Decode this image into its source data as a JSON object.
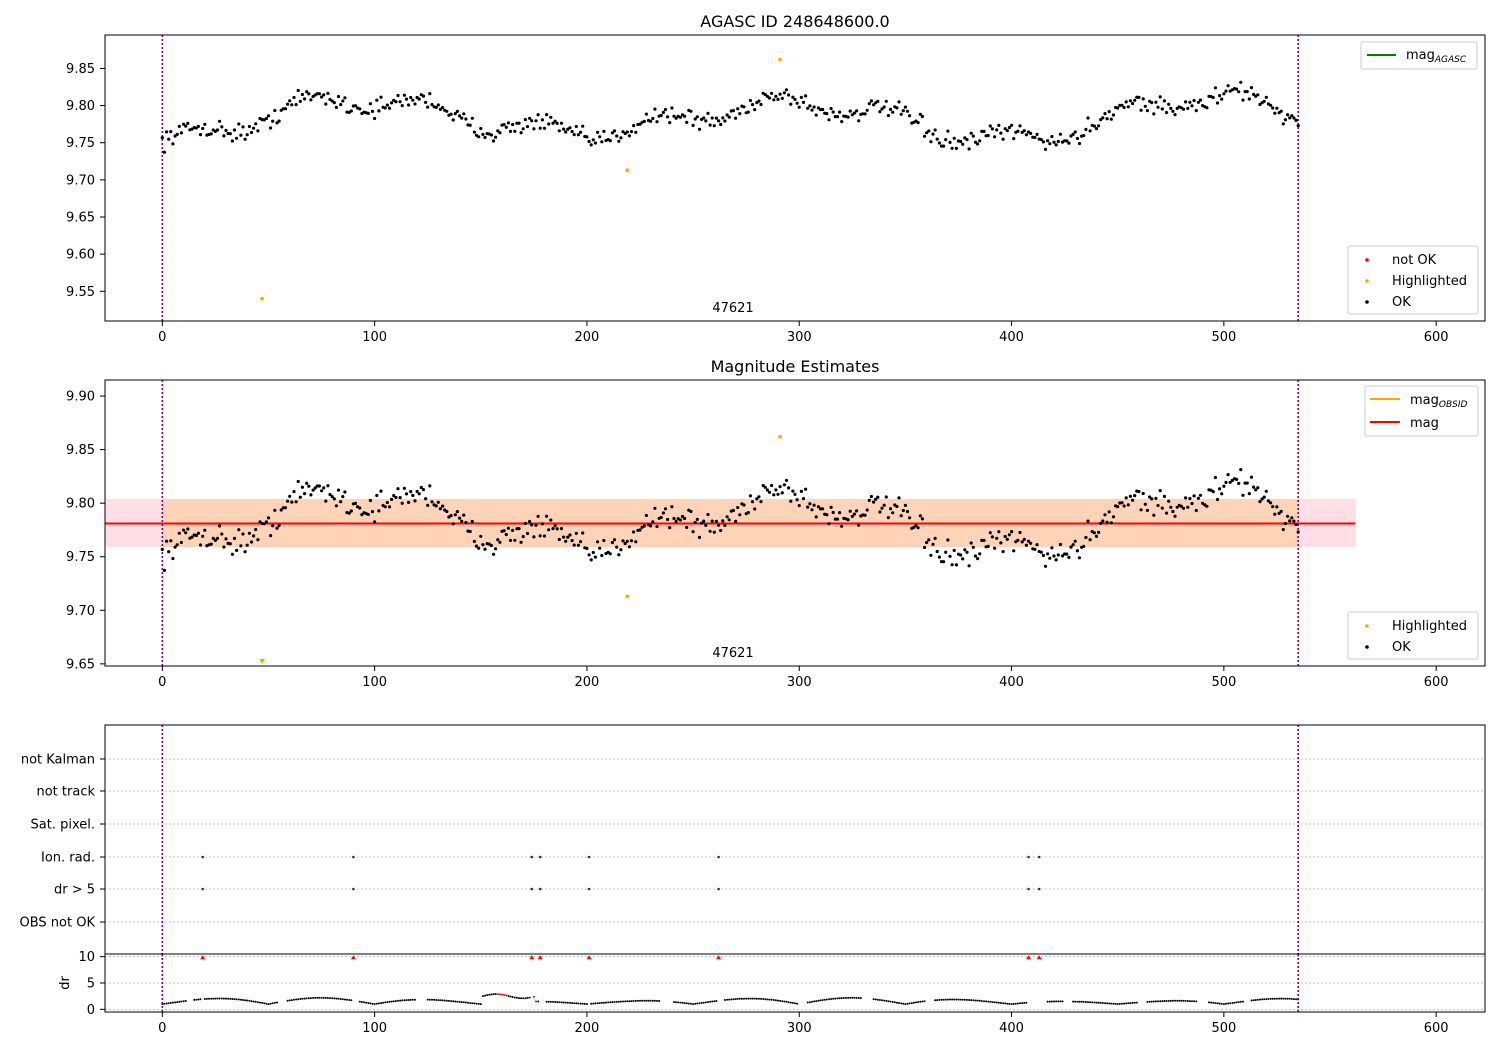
{
  "chart_data": [
    {
      "type": "scatter",
      "title": "AGASC ID 248648600.0",
      "xlim": [
        -27,
        623
      ],
      "ylim": [
        9.51,
        9.895
      ],
      "xticks": [
        0,
        100,
        200,
        300,
        400,
        500,
        600
      ],
      "yticks": [
        9.55,
        9.6,
        9.65,
        9.7,
        9.75,
        9.8,
        9.85
      ],
      "ytick_labels": [
        "9.55",
        "9.60",
        "9.65",
        "9.70",
        "9.75",
        "9.80",
        "9.85"
      ],
      "obsid_label": "47621",
      "obsid_boundaries": [
        0,
        535
      ],
      "legend_lines": [
        {
          "label_main": "mag",
          "label_sub": "AGASC",
          "color": "#008000"
        }
      ],
      "legend_points": [
        {
          "label": "not OK",
          "color": "#ff0000"
        },
        {
          "label": "Highlighted",
          "color": "#ffa500"
        },
        {
          "label": "OK",
          "color": "#000000"
        }
      ],
      "highlighted_points": [
        [
          47,
          9.54
        ],
        [
          219,
          9.713
        ],
        [
          291,
          9.862
        ]
      ]
    },
    {
      "type": "scatter",
      "title": "Magnitude Estimates",
      "xlim": [
        -27,
        623
      ],
      "ylim": [
        9.648,
        9.915
      ],
      "xticks": [
        0,
        100,
        200,
        300,
        400,
        500,
        600
      ],
      "yticks": [
        9.65,
        9.7,
        9.75,
        9.8,
        9.85,
        9.9
      ],
      "ytick_labels": [
        "9.65",
        "9.70",
        "9.75",
        "9.80",
        "9.85",
        "9.90"
      ],
      "obsid_label": "47621",
      "obsid_boundaries": [
        0,
        535
      ],
      "mag_mean": 9.781,
      "mag_band": [
        9.759,
        9.804
      ],
      "band_x_range": [
        -27,
        562
      ],
      "obsid_band_x_range": [
        0,
        535
      ],
      "legend_lines": [
        {
          "label_main": "mag",
          "label_sub": "OBSID",
          "color": "#ffa500"
        },
        {
          "label_main": "mag",
          "label_sub": "",
          "color": "#ff0000"
        }
      ],
      "legend_points": [
        {
          "label": "Highlighted",
          "color": "#ffa500"
        },
        {
          "label": "OK",
          "color": "#000000"
        }
      ],
      "highlighted_points": [
        [
          219,
          9.713
        ],
        [
          291,
          9.862
        ]
      ],
      "offscale_marker": {
        "x": 47,
        "label": "below range"
      }
    },
    {
      "type": "scatter",
      "title": "",
      "xlim": [
        -27,
        623
      ],
      "xticks": [
        0,
        100,
        200,
        300,
        400,
        500,
        600
      ],
      "flag_rows": [
        "not Kalman",
        "not track",
        "Sat. pixel.",
        "Ion. rad.",
        "dr > 5",
        "OBS not OK"
      ],
      "flag_points": {
        "Ion. rad.": [
          19,
          90,
          174,
          178,
          201,
          262,
          408,
          413
        ],
        "dr > 5": [
          19,
          90,
          174,
          178,
          201,
          262,
          408,
          413
        ]
      },
      "dr_ylabel": "dr",
      "dr_ylim": [
        -0.5,
        10.5
      ],
      "dr_yticks": [
        0,
        5,
        10
      ],
      "dr_ytick_labels": [
        "0",
        "5",
        "10"
      ],
      "dr_outliers": [
        19,
        90,
        174,
        178,
        201,
        262,
        408,
        413
      ],
      "obsid_boundaries": [
        0,
        535
      ]
    }
  ]
}
